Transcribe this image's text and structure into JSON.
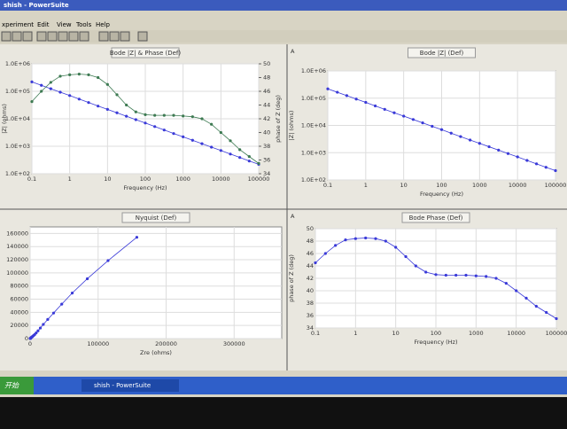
{
  "window": {
    "title": "shish - PowerSuite"
  },
  "menu": [
    "xperiment",
    "Edit",
    "View",
    "Tools",
    "Help"
  ],
  "taskbar": {
    "start": "开始",
    "task": "shish - PowerSuite"
  },
  "chart_data": [
    {
      "type": "line",
      "title": "Bode |Z| & Phase (Def)",
      "xlabel": "Frequency (Hz)",
      "ylabel": "|Z| (ohms)",
      "y2label": "phase of Z (deg)",
      "xscale": "log",
      "yscale": "log",
      "grid": true,
      "x": [
        0.1,
        0.178,
        0.316,
        0.562,
        1,
        1.78,
        3.16,
        5.62,
        10,
        17.8,
        31.6,
        56.2,
        100,
        178,
        316,
        562,
        1000,
        1780,
        3160,
        5620,
        10000,
        17800,
        31600,
        56200,
        100000
      ],
      "xlim": [
        0.1,
        100000
      ],
      "xticks": [
        0.1,
        1,
        10,
        100,
        1000,
        10000,
        100000
      ],
      "ylim": [
        100,
        1000000
      ],
      "yticks": [
        {
          "value": 100,
          "label": "1.0E+02"
        },
        {
          "value": 1000,
          "label": "1.0E+03"
        },
        {
          "value": 10000,
          "label": "1.0E+04"
        },
        {
          "value": 100000,
          "label": "1.0E+05"
        },
        {
          "value": 1000000,
          "label": "1.0E+06"
        }
      ],
      "y2lim": [
        34,
        50
      ],
      "y2ticks": [
        34,
        36,
        38,
        40,
        42,
        44,
        46,
        48,
        50
      ],
      "series": [
        {
          "color": "#3a3ad8",
          "values": [
            220000,
            165000,
            124000,
            93000,
            70000,
            52000,
            39000,
            29000,
            22000,
            16500,
            12400,
            9300,
            7000,
            5200,
            3900,
            2900,
            2200,
            1650,
            1240,
            930,
            700,
            520,
            390,
            290,
            220
          ]
        },
        {
          "color": "#3d7a52",
          "axis": "y2",
          "values": [
            44.5,
            46,
            47.3,
            48.2,
            48.4,
            48.5,
            48.4,
            48,
            47,
            45.5,
            44,
            43,
            42.6,
            42.5,
            42.5,
            42.5,
            42.4,
            42.3,
            42,
            41.2,
            40,
            38.8,
            37.5,
            36.5,
            35.5
          ]
        }
      ]
    },
    {
      "type": "line",
      "title": "Bode |Z| (Def)",
      "panel_label": "A",
      "xlabel": "Frequency (Hz)",
      "ylabel": "|Z| (ohms)",
      "xscale": "log",
      "yscale": "log",
      "grid": true,
      "x": [
        0.1,
        0.178,
        0.316,
        0.562,
        1,
        1.78,
        3.16,
        5.62,
        10,
        17.8,
        31.6,
        56.2,
        100,
        178,
        316,
        562,
        1000,
        1780,
        3160,
        5620,
        10000,
        17800,
        31600,
        56200,
        100000
      ],
      "xlim": [
        0.1,
        100000
      ],
      "xticks": [
        0.1,
        1,
        10,
        100,
        1000,
        10000,
        100000
      ],
      "ylim": [
        100,
        1000000
      ],
      "yticks": [
        {
          "value": 100,
          "label": "1.0E+02"
        },
        {
          "value": 1000,
          "label": "1.0E+03"
        },
        {
          "value": 10000,
          "label": "1.0E+04"
        },
        {
          "value": 100000,
          "label": "1.0E+05"
        },
        {
          "value": 1000000,
          "label": "1.0E+06"
        }
      ],
      "series": [
        {
          "color": "#3a3ad8",
          "values": [
            220000,
            165000,
            124000,
            93000,
            70000,
            52000,
            39000,
            29000,
            22000,
            16500,
            12400,
            9300,
            7000,
            5200,
            3900,
            2900,
            2200,
            1650,
            1240,
            930,
            700,
            520,
            390,
            290,
            220
          ]
        }
      ]
    },
    {
      "type": "line",
      "title": "Nyquist (Def)",
      "xlabel": "Zre (ohms)",
      "grid": true,
      "x": [
        156900,
        114600,
        84100,
        61900,
        46500,
        34500,
        25900,
        19400,
        15000,
        11600,
        8900,
        6800,
        5200,
        3800,
        2900,
        2100,
        1600,
        1200,
        900,
        700,
        530,
        400,
        310,
        230,
        180
      ],
      "xlim": [
        0,
        370000
      ],
      "xticks": [
        0,
        100000,
        200000,
        300000
      ],
      "ylim": [
        0,
        170000
      ],
      "yticks": [
        0,
        20000,
        40000,
        60000,
        80000,
        100000,
        120000,
        140000,
        160000
      ],
      "series": [
        {
          "color": "#3a3ad8",
          "values": [
            154200,
            118700,
            91100,
            69300,
            52400,
            38900,
            29200,
            21600,
            16100,
            11800,
            8600,
            6300,
            4700,
            3500,
            2600,
            2000,
            1500,
            1100,
            800,
            600,
            460,
            330,
            240,
            170,
            130
          ]
        }
      ]
    },
    {
      "type": "line",
      "title": "Bode Phase (Def)",
      "panel_label": "A",
      "xlabel": "Frequency (Hz)",
      "ylabel": "phase of Z (deg)",
      "xscale": "log",
      "grid": true,
      "x": [
        0.1,
        0.178,
        0.316,
        0.562,
        1,
        1.78,
        3.16,
        5.62,
        10,
        17.8,
        31.6,
        56.2,
        100,
        178,
        316,
        562,
        1000,
        1780,
        3160,
        5620,
        10000,
        17800,
        31600,
        56200,
        100000
      ],
      "xlim": [
        0.1,
        100000
      ],
      "xticks": [
        0.1,
        1,
        10,
        100,
        1000,
        10000,
        100000
      ],
      "ylim": [
        34,
        50
      ],
      "yticks": [
        34,
        36,
        38,
        40,
        42,
        44,
        46,
        48,
        50
      ],
      "series": [
        {
          "color": "#3a3ad8",
          "values": [
            44.5,
            46,
            47.3,
            48.2,
            48.4,
            48.5,
            48.4,
            48,
            47,
            45.5,
            44,
            43,
            42.6,
            42.5,
            42.5,
            42.5,
            42.4,
            42.3,
            42,
            41.2,
            40,
            38.8,
            37.5,
            36.5,
            35.5
          ]
        }
      ]
    }
  ]
}
